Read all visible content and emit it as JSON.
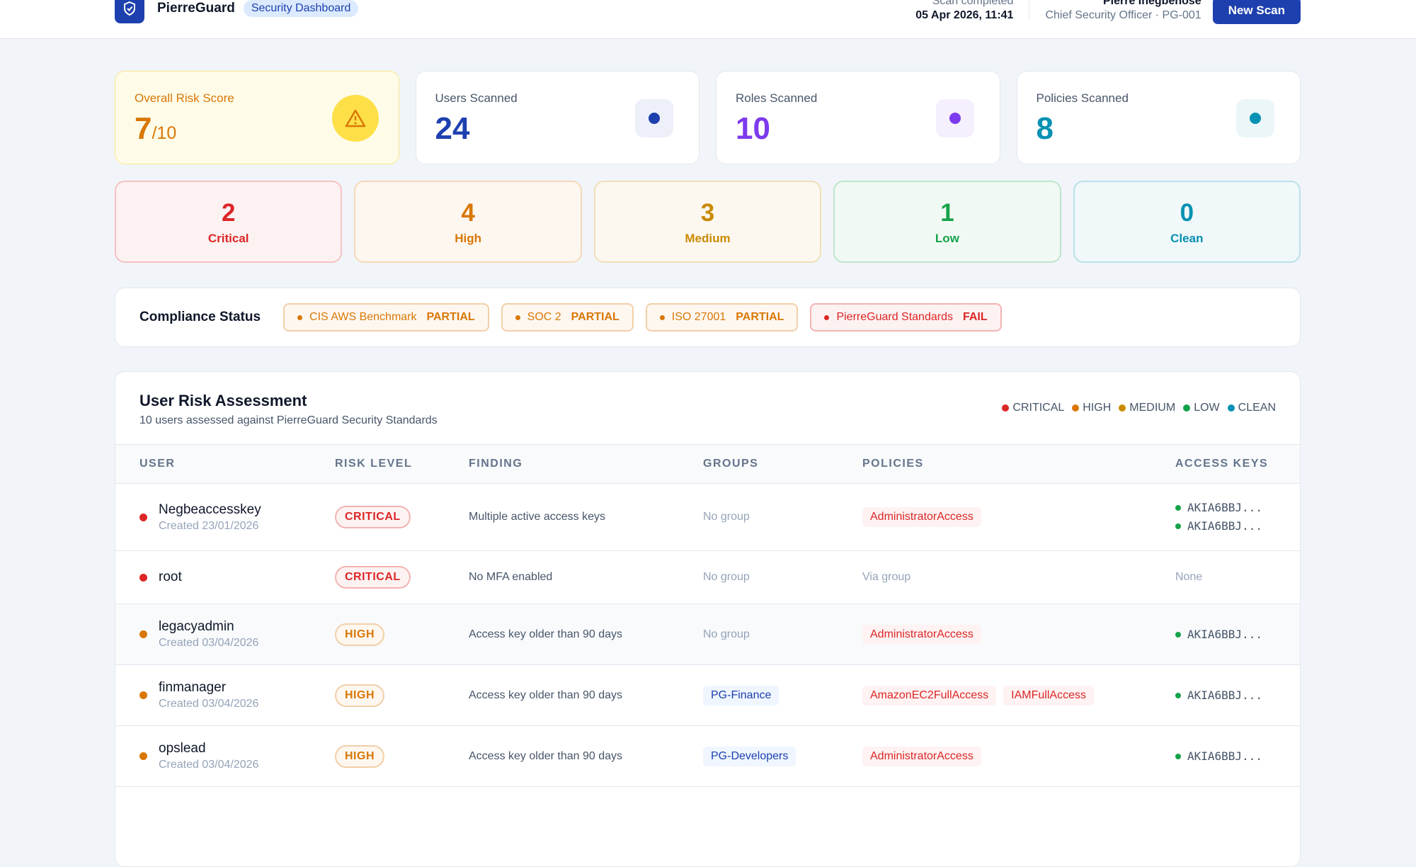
{
  "header": {
    "brand": "PierreGuard",
    "badge": "Security Dashboard",
    "scan_label": "Scan completed",
    "scan_time": "05 Apr 2026, 11:41",
    "user_name": "Pierre Inegbenose",
    "user_role": "Chief Security Officer · PG-001",
    "button": "New Scan"
  },
  "stats": [
    {
      "label": "Overall Risk Score",
      "value": "7",
      "suffix": "/10",
      "color": "#d97706"
    },
    {
      "label": "Users Scanned",
      "value": "24",
      "color": "#1e40af"
    },
    {
      "label": "Roles Scanned",
      "value": "10",
      "color": "#7c3aed"
    },
    {
      "label": "Policies Scanned",
      "value": "8",
      "color": "#0891b2"
    }
  ],
  "severity": [
    {
      "count": "2",
      "label": "Critical",
      "color": "#dc2626"
    },
    {
      "count": "4",
      "label": "High",
      "color": "#d97706"
    },
    {
      "count": "3",
      "label": "Medium",
      "color": "#ca8a04"
    },
    {
      "count": "1",
      "label": "Low",
      "color": "#16a34a"
    },
    {
      "count": "0",
      "label": "Clean",
      "color": "#0891b2"
    }
  ],
  "compliance": {
    "title": "Compliance Status",
    "items": [
      {
        "name": "CIS AWS Benchmark",
        "status": "PARTIAL",
        "color": "#d97706"
      },
      {
        "name": "SOC 2",
        "status": "PARTIAL",
        "color": "#d97706"
      },
      {
        "name": "ISO 27001",
        "status": "PARTIAL",
        "color": "#d97706"
      },
      {
        "name": "PierreGuard Standards",
        "status": "FAIL",
        "color": "#dc2626"
      }
    ]
  },
  "table": {
    "title": "User Risk Assessment",
    "subtitle": "10 users assessed against PierreGuard Security Standards",
    "legend": [
      {
        "name": "CRITICAL",
        "color": "#dc2626"
      },
      {
        "name": "HIGH",
        "color": "#d97706"
      },
      {
        "name": "MEDIUM",
        "color": "#ca8a04"
      },
      {
        "name": "LOW",
        "color": "#16a34a"
      },
      {
        "name": "CLEAN",
        "color": "#0891b2"
      }
    ],
    "columns": [
      "USER",
      "RISK LEVEL",
      "FINDING",
      "GROUPS",
      "POLICIES",
      "ACCESS KEYS"
    ],
    "rows": [
      {
        "user": "Negbeaccesskey",
        "created": "Created 23/01/2026",
        "risk": "CRITICAL",
        "color": "#dc2626",
        "finding": "Multiple active access keys",
        "groups": "No group",
        "policies": [
          "AdministratorAccess"
        ],
        "keys": [
          "AKIA6BBJ...",
          "AKIA6BBJ..."
        ]
      },
      {
        "user": "root",
        "risk": "CRITICAL",
        "color": "#dc2626",
        "finding": "No MFA enabled",
        "groups": "No group",
        "policies": "Via group",
        "keys": "None"
      },
      {
        "user": "legacyadmin",
        "created": "Created 03/04/2026",
        "risk": "HIGH",
        "color": "#d97706",
        "finding": "Access key older than 90 days",
        "groups": "No group",
        "policies": [
          "AdministratorAccess"
        ],
        "keys": [
          "AKIA6BBJ..."
        ]
      },
      {
        "user": "finmanager",
        "created": "Created 03/04/2026",
        "risk": "HIGH",
        "color": "#d97706",
        "finding": "Access key older than 90 days",
        "groups": [
          "PG-Finance"
        ],
        "policies": [
          "AmazonEC2FullAccess",
          "IAMFullAccess"
        ],
        "keys": [
          "AKIA6BBJ..."
        ]
      },
      {
        "user": "opslead",
        "created": "Created 03/04/2026",
        "risk": "HIGH",
        "color": "#d97706",
        "finding": "Access key older than 90 days",
        "groups": [
          "PG-Developers"
        ],
        "policies": [
          "AdministratorAccess"
        ],
        "keys": [
          "AKIA6BBJ..."
        ]
      }
    ]
  }
}
